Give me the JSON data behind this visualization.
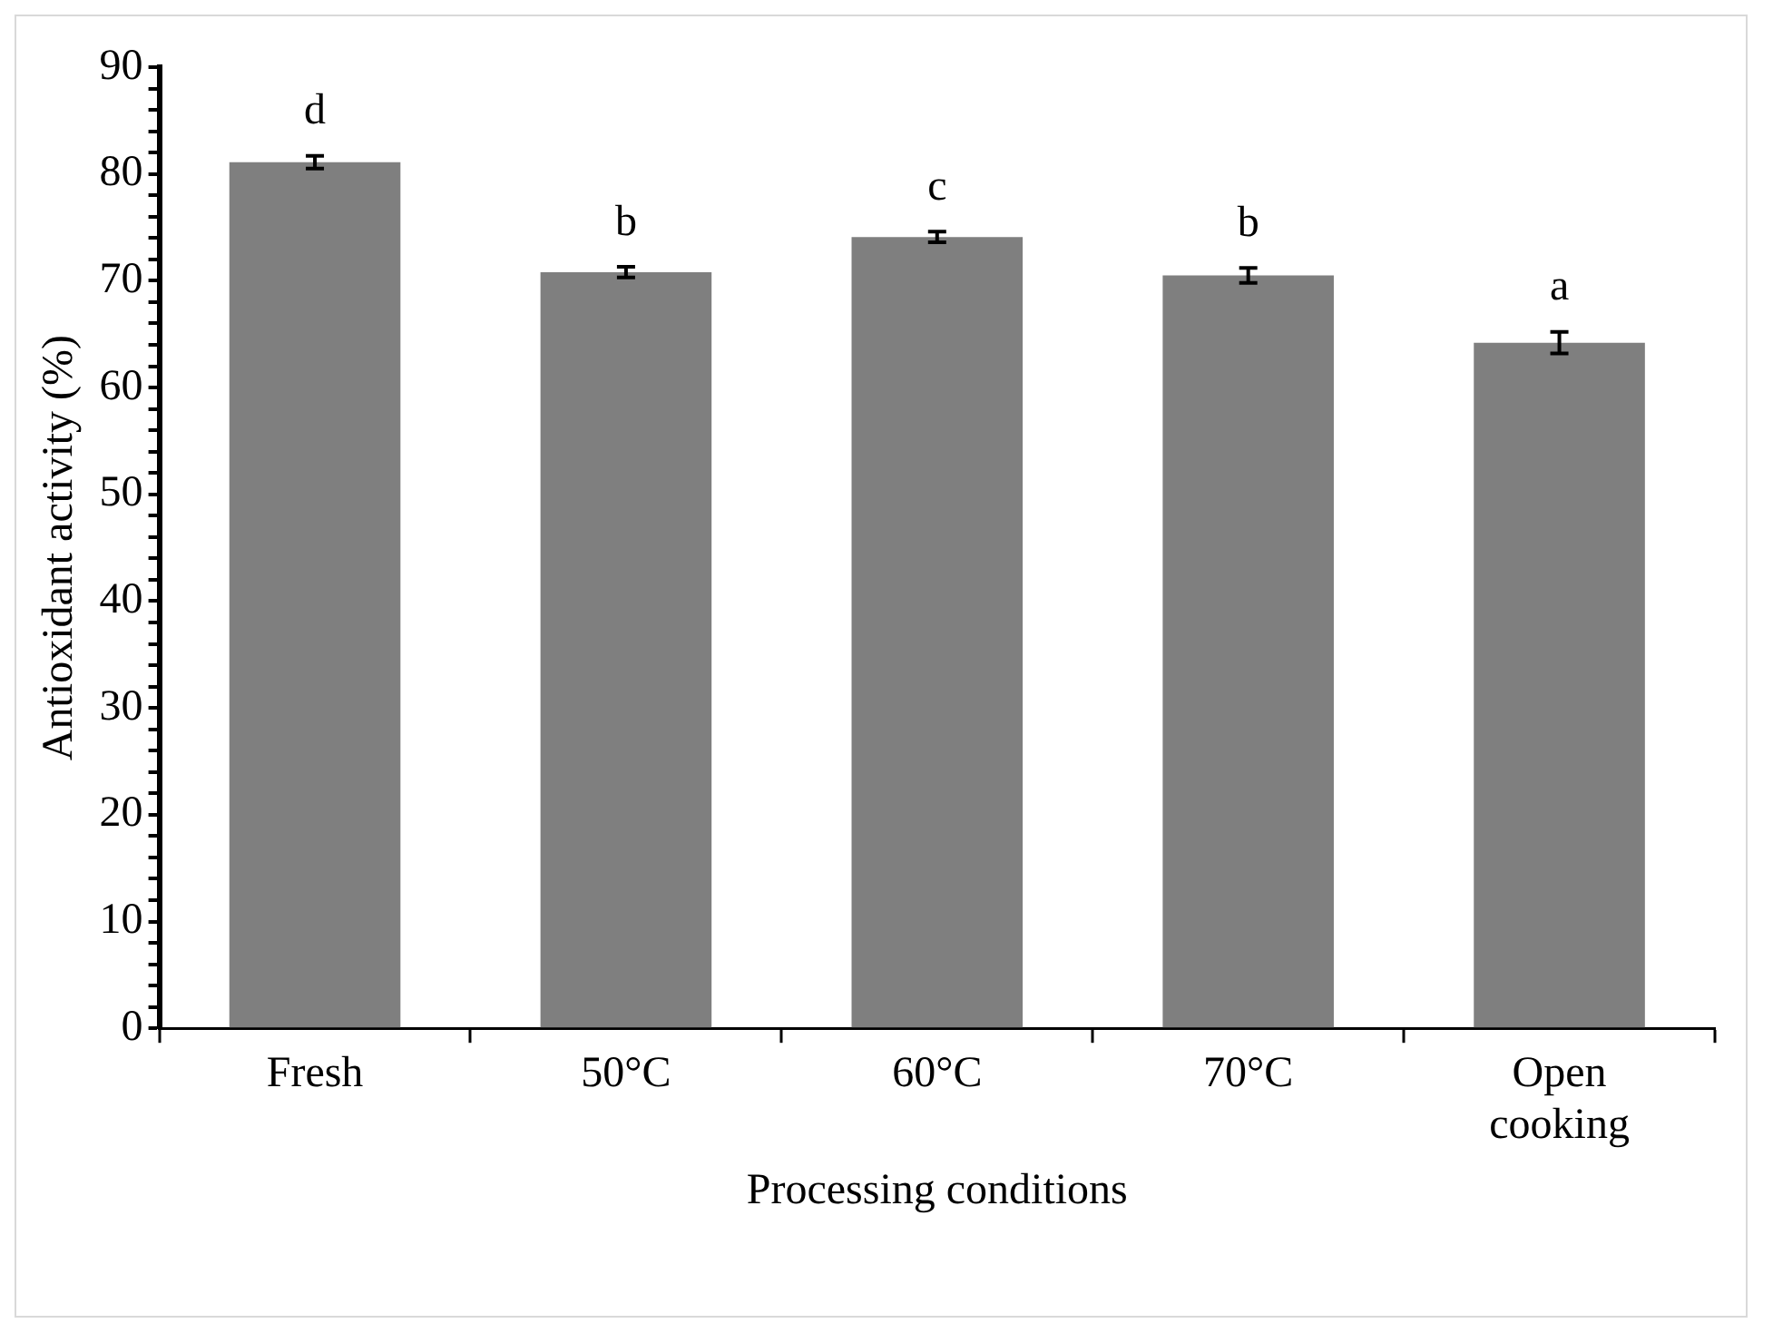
{
  "chart_data": {
    "type": "bar",
    "xlabel": "Processing conditions",
    "ylabel": "Antioxidant activity (%)",
    "categories": [
      "Fresh",
      "50°C",
      "60°C",
      "70°C",
      "Open cooking"
    ],
    "values": [
      81.1,
      70.8,
      74.1,
      70.5,
      64.2
    ],
    "errors": [
      0.6,
      0.5,
      0.5,
      0.7,
      1.0
    ],
    "color": "#7f7f7f",
    "ylim": [
      0,
      90
    ],
    "yticks": [
      0,
      {
        "value": 2,
        "label": null
      },
      {
        "value": 4,
        "label": null
      },
      {
        "value": 6,
        "label": null
      },
      {
        "value": 8,
        "label": null
      },
      10,
      {
        "value": 12,
        "label": null
      },
      {
        "value": 14,
        "label": null
      },
      {
        "value": 16,
        "label": null
      },
      {
        "value": 18,
        "label": null
      },
      20,
      {
        "value": 22,
        "label": null
      },
      {
        "value": 24,
        "label": null
      },
      {
        "value": 26,
        "label": null
      },
      {
        "value": 28,
        "label": null
      },
      30,
      {
        "value": 32,
        "label": null
      },
      {
        "value": 34,
        "label": null
      },
      {
        "value": 36,
        "label": null
      },
      {
        "value": 38,
        "label": null
      },
      40,
      {
        "value": 42,
        "label": null
      },
      {
        "value": 44,
        "label": null
      },
      {
        "value": 46,
        "label": null
      },
      {
        "value": 48,
        "label": null
      },
      50,
      {
        "value": 52,
        "label": null
      },
      {
        "value": 54,
        "label": null
      },
      {
        "value": 56,
        "label": null
      },
      {
        "value": 58,
        "label": null
      },
      60,
      {
        "value": 62,
        "label": null
      },
      {
        "value": 64,
        "label": null
      },
      {
        "value": 66,
        "label": null
      },
      {
        "value": 68,
        "label": null
      },
      70,
      {
        "value": 72,
        "label": null
      },
      {
        "value": 74,
        "label": null
      },
      {
        "value": 76,
        "label": null
      },
      {
        "value": 78,
        "label": null
      },
      80,
      {
        "value": 82,
        "label": null
      },
      {
        "value": 84,
        "label": null
      },
      {
        "value": 86,
        "label": null
      },
      {
        "value": 88,
        "label": null
      },
      90
    ],
    "annotations": [
      {
        "text": "d",
        "x": "Fresh",
        "y": 81.1
      },
      {
        "text": "b",
        "x": "50°C",
        "y": 70.8
      },
      {
        "text": "c",
        "x": "60°C",
        "y": 74.1
      },
      {
        "text": "b",
        "x": "70°C",
        "y": 70.5
      },
      {
        "text": "a",
        "x": "Open cooking",
        "y": 64.2
      }
    ],
    "grid": false,
    "legend": false
  }
}
